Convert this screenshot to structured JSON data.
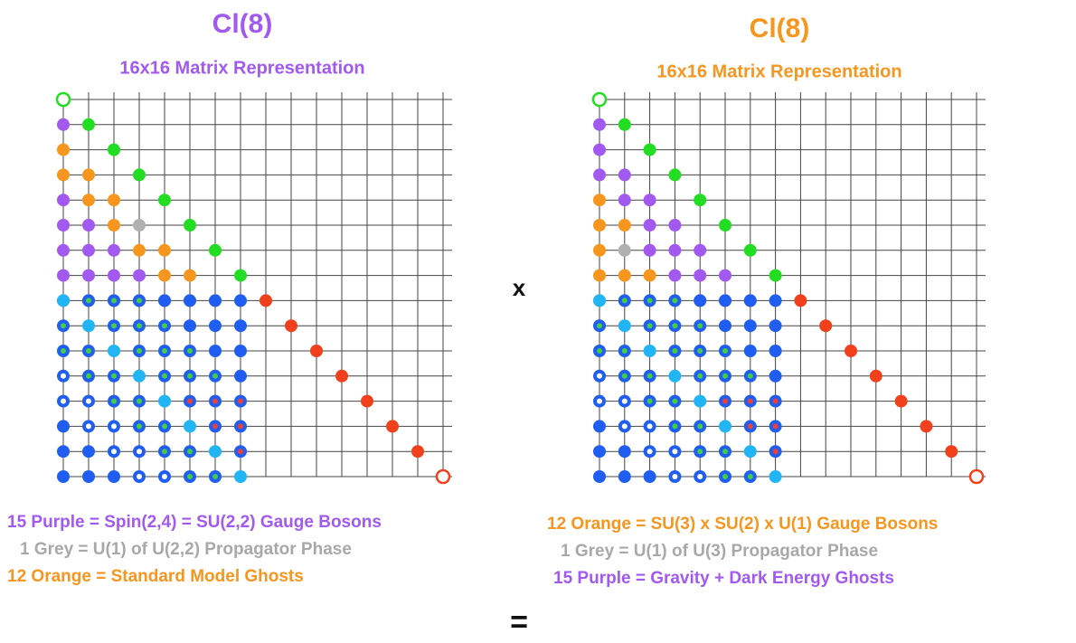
{
  "panels": [
    {
      "title": "Cl(8)",
      "subtitle": "16x16 Matrix Representation",
      "color": "#a259f0",
      "captions": [
        {
          "text": "15 Purple = Spin(2,4) = SU(2,2) Gauge Bosons",
          "color": "#a259f0"
        },
        {
          "text": "1 Grey = U(1) of U(2,2) Propagator Phase",
          "color": "#a8a8a8"
        },
        {
          "text": "12 Orange = Standard Model Ghosts",
          "color": "#f7961e"
        }
      ]
    },
    {
      "title": "Cl(8)",
      "subtitle": "16x16 Matrix Representation",
      "color": "#f7961e",
      "captions": [
        {
          "text": "12 Orange = SU(3) x SU(2) x U(1) Gauge Bosons",
          "color": "#f7961e"
        },
        {
          "text": "1 Grey = U(1) of U(3) Propagator Phase",
          "color": "#a8a8a8"
        },
        {
          "text": "15 Purple = Gravity + Dark Energy Ghosts",
          "color": "#a259f0"
        }
      ]
    }
  ],
  "times": "x",
  "equals": "="
}
